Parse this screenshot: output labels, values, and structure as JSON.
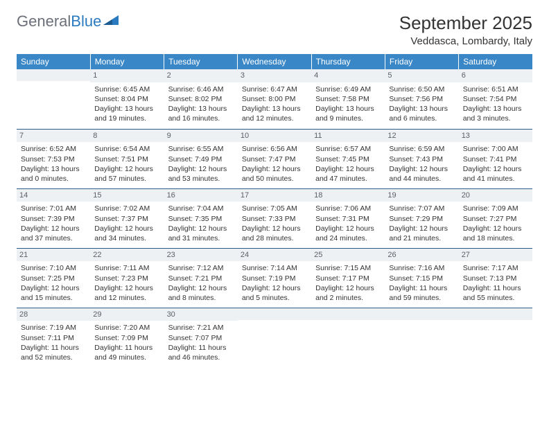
{
  "logo": {
    "text1": "General",
    "text2": "Blue"
  },
  "title": "September 2025",
  "location": "Veddasca, Lombardy, Italy",
  "headers": [
    "Sunday",
    "Monday",
    "Tuesday",
    "Wednesday",
    "Thursday",
    "Friday",
    "Saturday"
  ],
  "colors": {
    "header_bg": "#3a87c8",
    "header_text": "#ffffff",
    "daynum_bg": "#eef1f3",
    "daynum_text": "#5b6068",
    "border": "#2e5c88",
    "body_text": "#333333",
    "logo_gray": "#6b6f78",
    "logo_blue": "#2a7abf"
  },
  "weeks": [
    [
      {
        "day": "",
        "sunrise": "",
        "sunset": "",
        "daylight1": "",
        "daylight2": ""
      },
      {
        "day": "1",
        "sunrise": "Sunrise: 6:45 AM",
        "sunset": "Sunset: 8:04 PM",
        "daylight1": "Daylight: 13 hours",
        "daylight2": "and 19 minutes."
      },
      {
        "day": "2",
        "sunrise": "Sunrise: 6:46 AM",
        "sunset": "Sunset: 8:02 PM",
        "daylight1": "Daylight: 13 hours",
        "daylight2": "and 16 minutes."
      },
      {
        "day": "3",
        "sunrise": "Sunrise: 6:47 AM",
        "sunset": "Sunset: 8:00 PM",
        "daylight1": "Daylight: 13 hours",
        "daylight2": "and 12 minutes."
      },
      {
        "day": "4",
        "sunrise": "Sunrise: 6:49 AM",
        "sunset": "Sunset: 7:58 PM",
        "daylight1": "Daylight: 13 hours",
        "daylight2": "and 9 minutes."
      },
      {
        "day": "5",
        "sunrise": "Sunrise: 6:50 AM",
        "sunset": "Sunset: 7:56 PM",
        "daylight1": "Daylight: 13 hours",
        "daylight2": "and 6 minutes."
      },
      {
        "day": "6",
        "sunrise": "Sunrise: 6:51 AM",
        "sunset": "Sunset: 7:54 PM",
        "daylight1": "Daylight: 13 hours",
        "daylight2": "and 3 minutes."
      }
    ],
    [
      {
        "day": "7",
        "sunrise": "Sunrise: 6:52 AM",
        "sunset": "Sunset: 7:53 PM",
        "daylight1": "Daylight: 13 hours",
        "daylight2": "and 0 minutes."
      },
      {
        "day": "8",
        "sunrise": "Sunrise: 6:54 AM",
        "sunset": "Sunset: 7:51 PM",
        "daylight1": "Daylight: 12 hours",
        "daylight2": "and 57 minutes."
      },
      {
        "day": "9",
        "sunrise": "Sunrise: 6:55 AM",
        "sunset": "Sunset: 7:49 PM",
        "daylight1": "Daylight: 12 hours",
        "daylight2": "and 53 minutes."
      },
      {
        "day": "10",
        "sunrise": "Sunrise: 6:56 AM",
        "sunset": "Sunset: 7:47 PM",
        "daylight1": "Daylight: 12 hours",
        "daylight2": "and 50 minutes."
      },
      {
        "day": "11",
        "sunrise": "Sunrise: 6:57 AM",
        "sunset": "Sunset: 7:45 PM",
        "daylight1": "Daylight: 12 hours",
        "daylight2": "and 47 minutes."
      },
      {
        "day": "12",
        "sunrise": "Sunrise: 6:59 AM",
        "sunset": "Sunset: 7:43 PM",
        "daylight1": "Daylight: 12 hours",
        "daylight2": "and 44 minutes."
      },
      {
        "day": "13",
        "sunrise": "Sunrise: 7:00 AM",
        "sunset": "Sunset: 7:41 PM",
        "daylight1": "Daylight: 12 hours",
        "daylight2": "and 41 minutes."
      }
    ],
    [
      {
        "day": "14",
        "sunrise": "Sunrise: 7:01 AM",
        "sunset": "Sunset: 7:39 PM",
        "daylight1": "Daylight: 12 hours",
        "daylight2": "and 37 minutes."
      },
      {
        "day": "15",
        "sunrise": "Sunrise: 7:02 AM",
        "sunset": "Sunset: 7:37 PM",
        "daylight1": "Daylight: 12 hours",
        "daylight2": "and 34 minutes."
      },
      {
        "day": "16",
        "sunrise": "Sunrise: 7:04 AM",
        "sunset": "Sunset: 7:35 PM",
        "daylight1": "Daylight: 12 hours",
        "daylight2": "and 31 minutes."
      },
      {
        "day": "17",
        "sunrise": "Sunrise: 7:05 AM",
        "sunset": "Sunset: 7:33 PM",
        "daylight1": "Daylight: 12 hours",
        "daylight2": "and 28 minutes."
      },
      {
        "day": "18",
        "sunrise": "Sunrise: 7:06 AM",
        "sunset": "Sunset: 7:31 PM",
        "daylight1": "Daylight: 12 hours",
        "daylight2": "and 24 minutes."
      },
      {
        "day": "19",
        "sunrise": "Sunrise: 7:07 AM",
        "sunset": "Sunset: 7:29 PM",
        "daylight1": "Daylight: 12 hours",
        "daylight2": "and 21 minutes."
      },
      {
        "day": "20",
        "sunrise": "Sunrise: 7:09 AM",
        "sunset": "Sunset: 7:27 PM",
        "daylight1": "Daylight: 12 hours",
        "daylight2": "and 18 minutes."
      }
    ],
    [
      {
        "day": "21",
        "sunrise": "Sunrise: 7:10 AM",
        "sunset": "Sunset: 7:25 PM",
        "daylight1": "Daylight: 12 hours",
        "daylight2": "and 15 minutes."
      },
      {
        "day": "22",
        "sunrise": "Sunrise: 7:11 AM",
        "sunset": "Sunset: 7:23 PM",
        "daylight1": "Daylight: 12 hours",
        "daylight2": "and 12 minutes."
      },
      {
        "day": "23",
        "sunrise": "Sunrise: 7:12 AM",
        "sunset": "Sunset: 7:21 PM",
        "daylight1": "Daylight: 12 hours",
        "daylight2": "and 8 minutes."
      },
      {
        "day": "24",
        "sunrise": "Sunrise: 7:14 AM",
        "sunset": "Sunset: 7:19 PM",
        "daylight1": "Daylight: 12 hours",
        "daylight2": "and 5 minutes."
      },
      {
        "day": "25",
        "sunrise": "Sunrise: 7:15 AM",
        "sunset": "Sunset: 7:17 PM",
        "daylight1": "Daylight: 12 hours",
        "daylight2": "and 2 minutes."
      },
      {
        "day": "26",
        "sunrise": "Sunrise: 7:16 AM",
        "sunset": "Sunset: 7:15 PM",
        "daylight1": "Daylight: 11 hours",
        "daylight2": "and 59 minutes."
      },
      {
        "day": "27",
        "sunrise": "Sunrise: 7:17 AM",
        "sunset": "Sunset: 7:13 PM",
        "daylight1": "Daylight: 11 hours",
        "daylight2": "and 55 minutes."
      }
    ],
    [
      {
        "day": "28",
        "sunrise": "Sunrise: 7:19 AM",
        "sunset": "Sunset: 7:11 PM",
        "daylight1": "Daylight: 11 hours",
        "daylight2": "and 52 minutes."
      },
      {
        "day": "29",
        "sunrise": "Sunrise: 7:20 AM",
        "sunset": "Sunset: 7:09 PM",
        "daylight1": "Daylight: 11 hours",
        "daylight2": "and 49 minutes."
      },
      {
        "day": "30",
        "sunrise": "Sunrise: 7:21 AM",
        "sunset": "Sunset: 7:07 PM",
        "daylight1": "Daylight: 11 hours",
        "daylight2": "and 46 minutes."
      },
      {
        "day": "",
        "sunrise": "",
        "sunset": "",
        "daylight1": "",
        "daylight2": ""
      },
      {
        "day": "",
        "sunrise": "",
        "sunset": "",
        "daylight1": "",
        "daylight2": ""
      },
      {
        "day": "",
        "sunrise": "",
        "sunset": "",
        "daylight1": "",
        "daylight2": ""
      },
      {
        "day": "",
        "sunrise": "",
        "sunset": "",
        "daylight1": "",
        "daylight2": ""
      }
    ]
  ]
}
